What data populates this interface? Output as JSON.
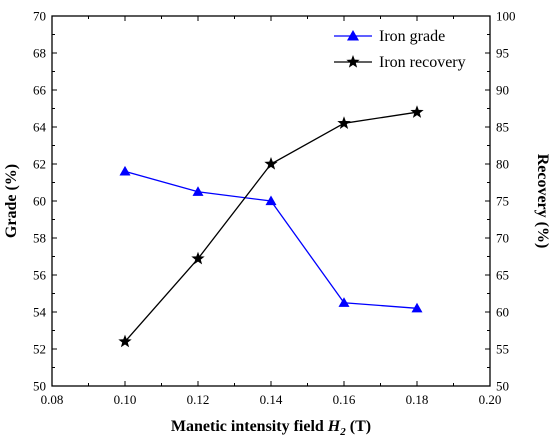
{
  "chart_data": {
    "type": "line",
    "x": [
      0.1,
      0.12,
      0.14,
      0.16,
      0.18
    ],
    "xlim": [
      0.08,
      0.2
    ],
    "xticks": [
      "0.08",
      "0.10",
      "0.12",
      "0.14",
      "0.16",
      "0.18",
      "0.20"
    ],
    "xlabel": {
      "main": "Manetic intensity field ",
      "var": "H",
      "sub": "2",
      "unit": " (T)"
    },
    "y_left": {
      "label": "Grade (%)",
      "lim": [
        50,
        70
      ],
      "ticks": [
        "50",
        "52",
        "54",
        "56",
        "58",
        "60",
        "62",
        "64",
        "66",
        "68",
        "70"
      ]
    },
    "y_right": {
      "label": "Recovery (%)",
      "lim": [
        50,
        100
      ],
      "ticks": [
        "50",
        "55",
        "60",
        "65",
        "70",
        "75",
        "80",
        "85",
        "90",
        "95",
        "100"
      ]
    },
    "series": [
      {
        "name": "Iron grade",
        "axis": "left",
        "marker": "triangle",
        "color": "#0000ff",
        "values": [
          61.6,
          60.5,
          60.0,
          54.5,
          54.2
        ]
      },
      {
        "name": "Iron recovery",
        "axis": "right",
        "marker": "star",
        "color": "#000000",
        "values": [
          56.0,
          67.2,
          80.0,
          85.5,
          87.0
        ]
      }
    ],
    "legend": "top-right",
    "grid": false
  }
}
